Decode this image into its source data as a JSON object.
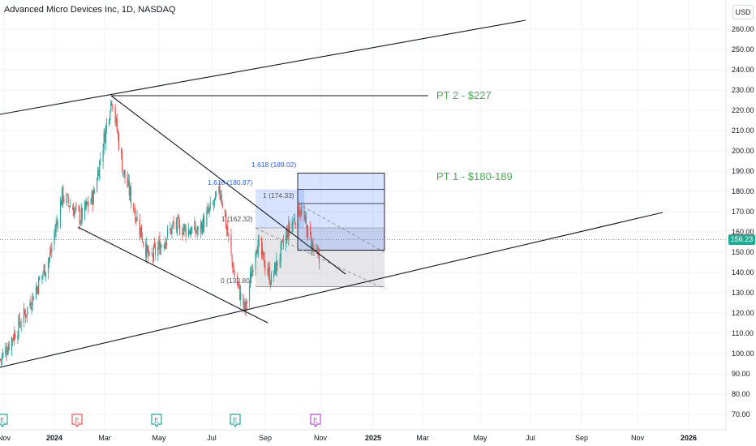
{
  "title": "Advanced Micro Devices Inc, 1D, NASDAQ",
  "currency": "USD",
  "current_price": "156.23",
  "colors": {
    "up": "#26a69a",
    "down": "#ef5350",
    "trendline": "#131722",
    "fib_blue": "#2962ff",
    "target_green": "#4caf50",
    "grid": "#f0f3fa",
    "earnings_green": "#26a69a",
    "earnings_red": "#ef5350",
    "earnings_purple": "#b84bd6"
  },
  "y_ticks": [
    "260.00",
    "250.00",
    "240.00",
    "230.00",
    "220.00",
    "210.00",
    "200.00",
    "190.00",
    "180.00",
    "170.00",
    "160.00",
    "150.00",
    "140.00",
    "130.00",
    "120.00",
    "110.00",
    "100.00",
    "90.00",
    "80.00",
    "70.00"
  ],
  "x_ticks": [
    {
      "label": "Nov",
      "bold": false
    },
    {
      "label": "2024",
      "bold": true
    },
    {
      "label": "Mar",
      "bold": false
    },
    {
      "label": "May",
      "bold": false
    },
    {
      "label": "Jul",
      "bold": false
    },
    {
      "label": "Sep",
      "bold": false
    },
    {
      "label": "Nov",
      "bold": false
    },
    {
      "label": "2025",
      "bold": true
    },
    {
      "label": "Mar",
      "bold": false
    },
    {
      "label": "May",
      "bold": false
    },
    {
      "label": "Jul",
      "bold": false
    },
    {
      "label": "Sep",
      "bold": false
    },
    {
      "label": "Nov",
      "bold": false
    },
    {
      "label": "2026",
      "bold": true
    }
  ],
  "annotations": {
    "pt2": "PT 2 - $227",
    "pt1": "PT 1 - $180-189",
    "fib_1618_left": "1.618 (180.87)",
    "fib_1618_right": "1.618 (189.02)",
    "fib_1_right": "1 (174.33)",
    "fib_1_left": "1 (162.32)",
    "fib_0": "0 (132.80)"
  },
  "earnings_markers": [
    "E",
    "E",
    "E",
    "E",
    "E"
  ],
  "chart_data": {
    "type": "candlestick",
    "title": "Advanced Micro Devices Inc, 1D, NASDAQ",
    "timeframe": "1D",
    "exchange": "NASDAQ",
    "x_range": [
      "2023-11",
      "2026-01"
    ],
    "ylim": [
      70,
      265
    ],
    "last_price": 156.23,
    "approx_path": [
      {
        "date": "2023-10-31",
        "close": 97
      },
      {
        "date": "2023-11-30",
        "close": 121
      },
      {
        "date": "2023-12-27",
        "close": 148
      },
      {
        "date": "2024-01-10",
        "close": 178
      },
      {
        "date": "2024-01-31",
        "close": 167
      },
      {
        "date": "2024-02-15",
        "close": 178
      },
      {
        "date": "2024-03-07",
        "close": 227
      },
      {
        "date": "2024-03-20",
        "close": 190
      },
      {
        "date": "2024-04-19",
        "close": 146
      },
      {
        "date": "2024-05-17",
        "close": 163
      },
      {
        "date": "2024-06-14",
        "close": 160
      },
      {
        "date": "2024-07-10",
        "close": 180
      },
      {
        "date": "2024-07-25",
        "close": 140
      },
      {
        "date": "2024-08-07",
        "close": 121
      },
      {
        "date": "2024-08-20",
        "close": 155
      },
      {
        "date": "2024-09-06",
        "close": 136
      },
      {
        "date": "2024-09-25",
        "close": 160
      },
      {
        "date": "2024-10-09",
        "close": 172
      },
      {
        "date": "2024-10-20",
        "close": 157
      },
      {
        "date": "2024-10-31",
        "close": 145
      }
    ],
    "fib_levels": [
      {
        "label": "1.618",
        "value": 180.87
      },
      {
        "label": "1.618",
        "value": 189.02
      },
      {
        "label": "1",
        "value": 174.33
      },
      {
        "label": "1",
        "value": 162.32
      },
      {
        "label": "0",
        "value": 132.8
      }
    ],
    "price_targets": [
      {
        "label": "PT 2 - $227",
        "value": 227
      },
      {
        "label": "PT 1 - $180-189",
        "range": [
          180,
          189
        ]
      }
    ],
    "grid": true,
    "legend": "none"
  }
}
